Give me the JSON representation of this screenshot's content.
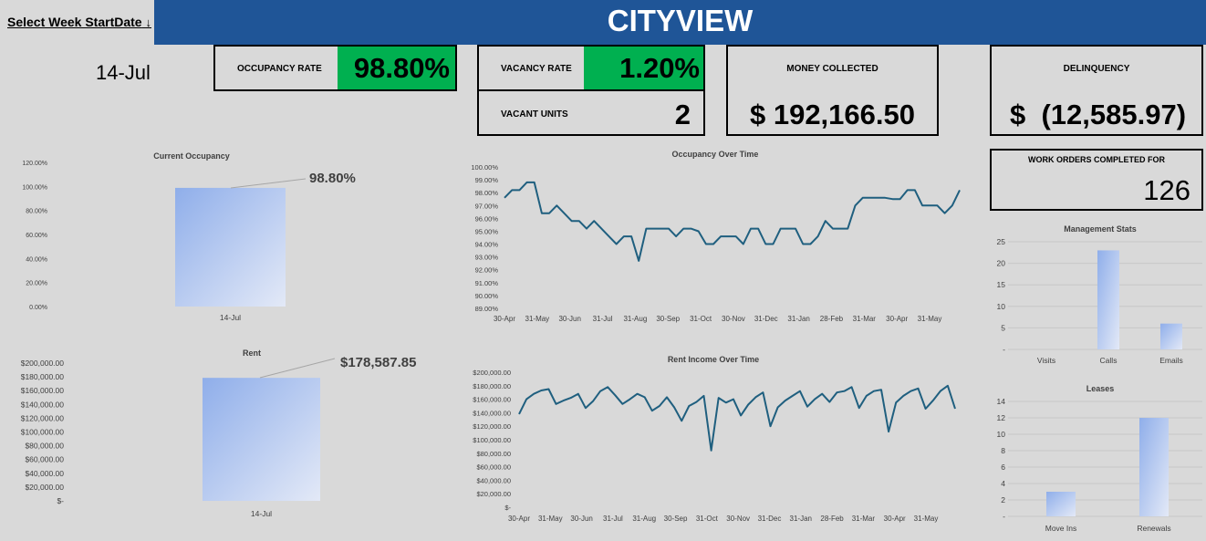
{
  "header": {
    "title": "CITYVIEW",
    "select_week_label": "Select Week StartDate",
    "select_icon": "arrow-down-icon",
    "banner_color": "#1f5597"
  },
  "week": {
    "label": "14-Jul"
  },
  "kpis": {
    "occupancy_rate": {
      "label": "OCCUPANCY RATE",
      "value": "98.80%",
      "accent": "#00b050"
    },
    "vacancy_rate": {
      "label": "VACANCY RATE",
      "value": "1.20%",
      "accent": "#00b050"
    },
    "vacant_units": {
      "label": "VACANT UNITS",
      "value": "2"
    },
    "money_collected": {
      "label": "MONEY COLLECTED",
      "value": "$ 192,166.50"
    },
    "delinquency": {
      "label": "DELINQUENCY",
      "value": "$  (12,585.97)"
    },
    "work_orders": {
      "label": "WORK ORDERS COMPLETED FOR",
      "value": "126"
    }
  },
  "chart_data": [
    {
      "id": "current_occupancy",
      "type": "bar",
      "title": "Current Occupancy",
      "categories": [
        "14-Jul"
      ],
      "values": [
        98.8
      ],
      "data_label": "98.80%",
      "ylim": [
        0,
        120
      ],
      "yticks": [
        "0.00%",
        "20.00%",
        "40.00%",
        "60.00%",
        "80.00%",
        "100.00%",
        "120.00%"
      ]
    },
    {
      "id": "rent",
      "type": "bar",
      "title": "Rent",
      "categories": [
        "14-Jul"
      ],
      "values": [
        178587.85
      ],
      "data_label": "$178,587.85",
      "ylim": [
        0,
        200000
      ],
      "yticks": [
        "$-",
        "$20,000.00",
        "$40,000.00",
        "$60,000.00",
        "$80,000.00",
        "$100,000.00",
        "$120,000.00",
        "$140,000.00",
        "$160,000.00",
        "$180,000.00",
        "$200,000.00"
      ]
    },
    {
      "id": "occupancy_over_time",
      "type": "line",
      "title": "Occupancy Over Time",
      "ylim": [
        89,
        100
      ],
      "yticks": [
        "89.00%",
        "90.00%",
        "91.00%",
        "92.00%",
        "93.00%",
        "94.00%",
        "95.00%",
        "96.00%",
        "97.00%",
        "98.00%",
        "99.00%",
        "100.00%"
      ],
      "xticks": [
        "30-Apr",
        "31-May",
        "30-Jun",
        "31-Jul",
        "31-Aug",
        "30-Sep",
        "31-Oct",
        "30-Nov",
        "31-Dec",
        "31-Jan",
        "28-Feb",
        "31-Mar",
        "30-Apr",
        "31-May"
      ],
      "color": "#1f5f7f",
      "values": [
        97.6,
        98.2,
        98.2,
        98.8,
        98.8,
        96.4,
        96.4,
        97.0,
        96.4,
        95.8,
        95.8,
        95.2,
        95.8,
        95.2,
        94.6,
        94.0,
        94.6,
        94.6,
        92.7,
        95.2,
        95.2,
        95.2,
        95.2,
        94.6,
        95.2,
        95.2,
        95.0,
        94.0,
        94.0,
        94.6,
        94.6,
        94.6,
        94.0,
        95.2,
        95.2,
        94.0,
        94.0,
        95.2,
        95.2,
        95.2,
        94.0,
        94.0,
        94.6,
        95.8,
        95.2,
        95.2,
        95.2,
        97.0,
        97.6,
        97.6,
        97.6,
        97.6,
        97.5,
        97.5,
        98.2,
        98.2,
        97.0,
        97.0,
        97.0,
        96.4,
        97.0,
        98.2
      ]
    },
    {
      "id": "rent_income_over_time",
      "type": "line",
      "title": "Rent Income Over Time",
      "ylim": [
        0,
        200000
      ],
      "yticks": [
        "$-",
        "$20,000.00",
        "$40,000.00",
        "$60,000.00",
        "$80,000.00",
        "$100,000.00",
        "$120,000.00",
        "$140,000.00",
        "$160,000.00",
        "$180,000.00",
        "$200,000.00"
      ],
      "xticks": [
        "30-Apr",
        "31-May",
        "30-Jun",
        "31-Jul",
        "31-Aug",
        "30-Sep",
        "31-Oct",
        "30-Nov",
        "31-Dec",
        "31-Jan",
        "28-Feb",
        "31-Mar",
        "30-Apr",
        "31-May"
      ],
      "color": "#1f5f7f",
      "values": [
        138000,
        160000,
        168000,
        173000,
        175000,
        153000,
        158000,
        162000,
        168000,
        147000,
        157000,
        172000,
        178000,
        166000,
        153000,
        160000,
        168000,
        163000,
        143000,
        150000,
        163000,
        148000,
        128000,
        150000,
        156000,
        165000,
        84000,
        162000,
        155000,
        160000,
        136000,
        152000,
        163000,
        170000,
        120000,
        148000,
        158000,
        165000,
        172000,
        149000,
        160000,
        168000,
        156000,
        170000,
        172000,
        178000,
        147000,
        165000,
        172000,
        174000,
        112000,
        155000,
        165000,
        172000,
        176000,
        146000,
        158000,
        172000,
        180000,
        146000
      ]
    },
    {
      "id": "management_stats",
      "type": "bar",
      "title": "Management Stats",
      "categories": [
        "Visits",
        "Calls",
        "Emails"
      ],
      "values": [
        0,
        23,
        6
      ],
      "ylim": [
        0,
        25
      ],
      "yticks": [
        "-",
        "5",
        "10",
        "15",
        "20",
        "25"
      ]
    },
    {
      "id": "leases",
      "type": "bar",
      "title": "Leases",
      "categories": [
        "Move Ins",
        "Renewals"
      ],
      "values": [
        3,
        12
      ],
      "ylim": [
        0,
        14
      ],
      "yticks": [
        "-",
        "2",
        "4",
        "6",
        "8",
        "10",
        "12",
        "14"
      ]
    }
  ]
}
